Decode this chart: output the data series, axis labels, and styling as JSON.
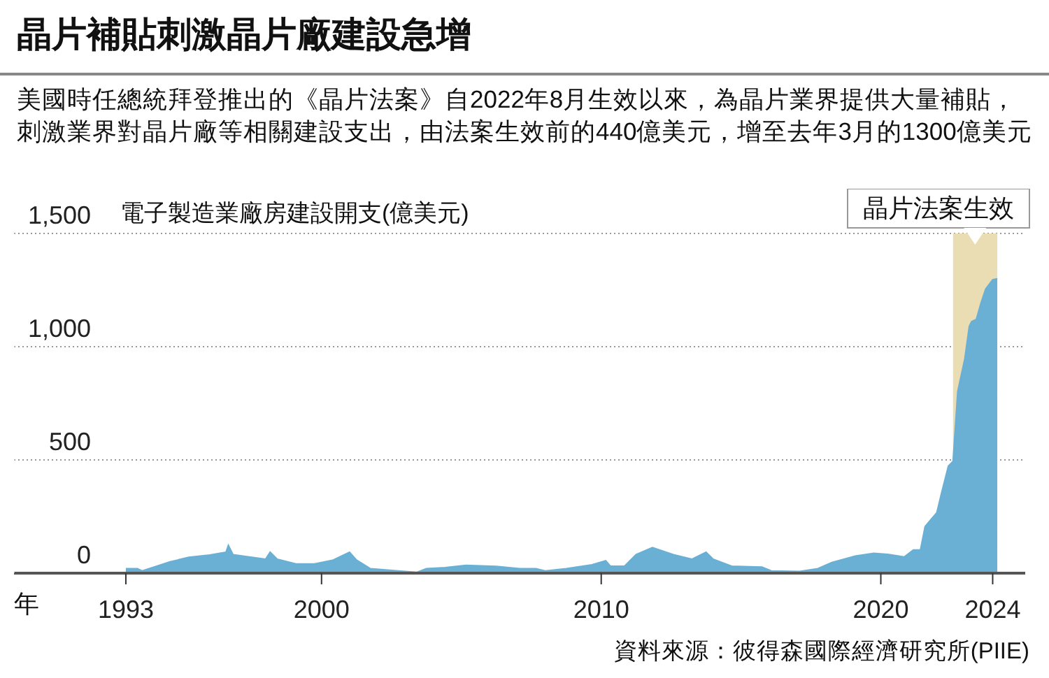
{
  "chart_data": {
    "type": "area",
    "title": "晶片補貼刺激晶片廠建設急增",
    "subtitle": "美國時任總統拜登推出的《晶片法案》自2022年8月生效以來，為晶片業界提供大量補貼，刺激業界對晶片廠等相關建設支出，由法案生效前的440億美元，增至去年3月的1300億美元",
    "ylabel": "電子製造業廠房建設開支(億美元)",
    "xlabel": "年",
    "x": [
      "1993-01",
      "1993-06",
      "1993-08",
      "1994-02",
      "1994-08",
      "1995-04",
      "1996-01",
      "1996-08",
      "1996-09",
      "1996-11",
      "1997-06",
      "1998-01",
      "1998-03",
      "1998-06",
      "1999-02",
      "1999-10",
      "2000-06",
      "2001-01",
      "2001-04",
      "2001-10",
      "2002-10",
      "2003-06",
      "2003-10",
      "2004-06",
      "2005-03",
      "2006-04",
      "2007-02",
      "2007-09",
      "2008-01",
      "2008-10",
      "2009-09",
      "2010-03",
      "2010-05",
      "2010-11",
      "2011-04",
      "2011-11",
      "2012-08",
      "2013-04",
      "2013-10",
      "2014-01",
      "2014-09",
      "2015-10",
      "2016-02",
      "2017-02",
      "2017-10",
      "2018-04",
      "2019-02",
      "2019-10",
      "2020-05",
      "2020-11",
      "2021-03",
      "2021-06",
      "2021-08",
      "2022-01",
      "2022-03",
      "2022-06",
      "2022-08",
      "2022-10",
      "2023-01",
      "2023-03",
      "2023-04",
      "2023-06",
      "2023-08",
      "2023-10",
      "2024-01",
      "2024-03"
    ],
    "series": [
      {
        "color": "#6aafd4",
        "values": [
          20,
          20,
          10,
          30,
          50,
          70,
          80,
          93,
          123,
          82,
          72,
          62,
          93,
          62,
          41,
          41,
          58,
          93,
          58,
          20,
          10,
          4,
          20,
          25,
          35,
          30,
          20,
          20,
          10,
          20,
          37,
          55,
          31,
          31,
          82,
          113,
          82,
          62,
          93,
          62,
          31,
          27,
          10,
          8,
          20,
          47,
          76,
          88,
          82,
          72,
          103,
          103,
          206,
          267,
          350,
          473,
          494,
          802,
          946,
          1090,
          1111,
          1121,
          1193,
          1255,
          1296,
          1300
        ]
      }
    ],
    "xlim": [
      "1989-01",
      "2025-03"
    ],
    "xticks": [
      "1993",
      "2000",
      "2010",
      "2020",
      "2024"
    ],
    "ylim": [
      0,
      1500
    ],
    "yticks": [
      0,
      500,
      {
        "value": 1000,
        "label": "1,000"
      },
      {
        "value": 1500,
        "label": "1,500"
      }
    ],
    "grid": "y",
    "bands": [
      {
        "axis": "x",
        "from": "2022-08",
        "to": "2024-03",
        "label": "晶片法案生效",
        "color": "#eadcb3"
      }
    ],
    "annotations": [
      "資料來源：彼得森國際經濟研究所(PIIE)"
    ]
  }
}
